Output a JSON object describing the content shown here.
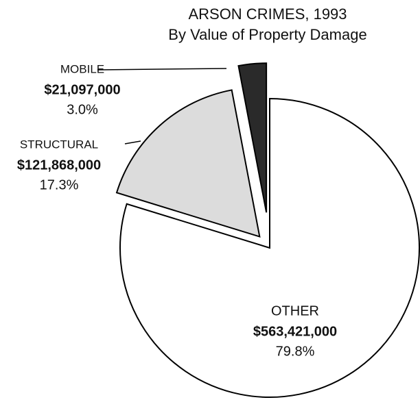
{
  "chart_data": {
    "type": "pie",
    "title": "ARSON CRIMES, 1993",
    "subtitle": "By Value of Property Damage",
    "categories": [
      "MOBILE",
      "STRUCTURAL",
      "OTHER"
    ],
    "values": [
      21097000,
      121868000,
      563421000
    ],
    "value_labels": [
      "$21,097,000",
      "$121,868,000",
      "$563,421,000"
    ],
    "percent_labels": [
      "3.0%",
      "17.3%",
      "79.8%"
    ],
    "colors": [
      "#2a2a2a",
      "#dcdcdc",
      "#ffffff"
    ]
  }
}
